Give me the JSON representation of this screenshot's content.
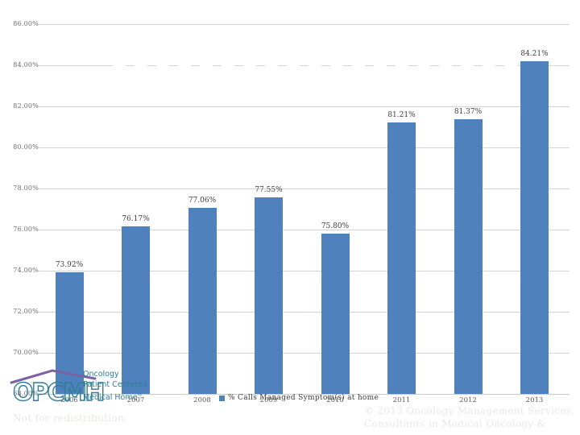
{
  "watermark": {
    "not_for_redistribution": "Not for redistribution.",
    "copyright_line1": "© 2013 Oncology Management Services,",
    "copyright_line2": "Consultants in Medical Oncology &"
  },
  "logo": {
    "acronym": "OPCMH",
    "line1": "Oncology",
    "line2": "Patient Centered",
    "line3": "Medical Home",
    "registered_mark": "®",
    "teal_color": "#2e7e95",
    "purple_color": "#7e61a4"
  },
  "chart_data": {
    "type": "bar",
    "title": "",
    "categories": [
      "2006",
      "2007",
      "2008",
      "2009",
      "2010",
      "2011",
      "2012",
      "2013"
    ],
    "values": [
      73.92,
      76.17,
      77.06,
      77.55,
      75.8,
      81.21,
      81.37,
      84.21
    ],
    "data_labels": [
      "73.92%",
      "76.17%",
      "77.06%",
      "77.55%",
      "75.80%",
      "81.21%",
      "81.37%",
      "84.21%"
    ],
    "legend": "% Calls Managed Symptom(s) at home",
    "legend_position": "bottom-center",
    "xlabel": "",
    "ylabel": "",
    "ylim": [
      68,
      86
    ],
    "ytick_step": 2,
    "ytick_labels": [
      "68.00%",
      "70.00%",
      "72.00%",
      "74.00%",
      "76.00%",
      "78.00%",
      "80.00%",
      "82.00%",
      "84.00%",
      "86.00%"
    ],
    "grid": true,
    "bar_color": "#4f81bd",
    "gridline_color": "#d4d4d4",
    "data_label_color": "#3c3c3c",
    "tick_label_color": "#6e6e6e"
  }
}
